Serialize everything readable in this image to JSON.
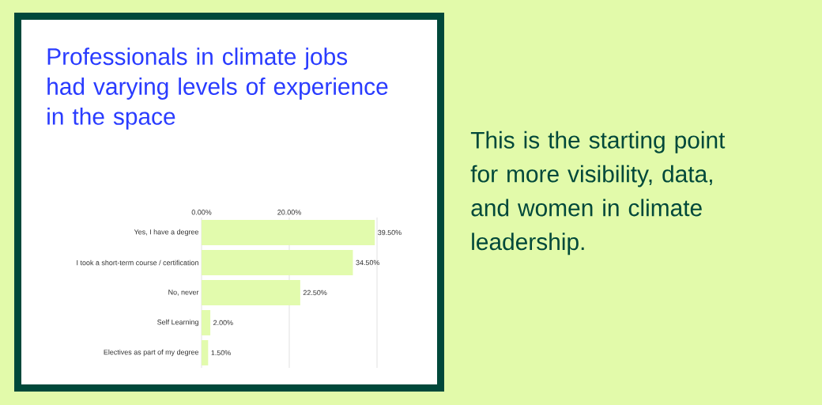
{
  "chart_data": {
    "type": "bar",
    "orientation": "horizontal",
    "title": "Professionals in climate jobs had varying levels of experience in the space",
    "categories": [
      "Yes, I have a degree",
      "I took a short-term course / certification",
      "No, never",
      "Self Learning",
      "Electives as part of my degree"
    ],
    "values": [
      39.5,
      34.5,
      22.5,
      2.0,
      1.5
    ],
    "value_labels": [
      "39.50%",
      "34.50%",
      "22.50%",
      "2.00%",
      "1.50%"
    ],
    "color": "#e2fbad",
    "xlim": [
      0,
      40
    ],
    "xticks": [
      {
        "value": 0,
        "label": "0.00%"
      },
      {
        "value": 20,
        "label": "20.00%"
      }
    ],
    "grid": "x",
    "annotations": [
      "This is the starting point for more visibility, data, and women in climate leadership."
    ]
  }
}
